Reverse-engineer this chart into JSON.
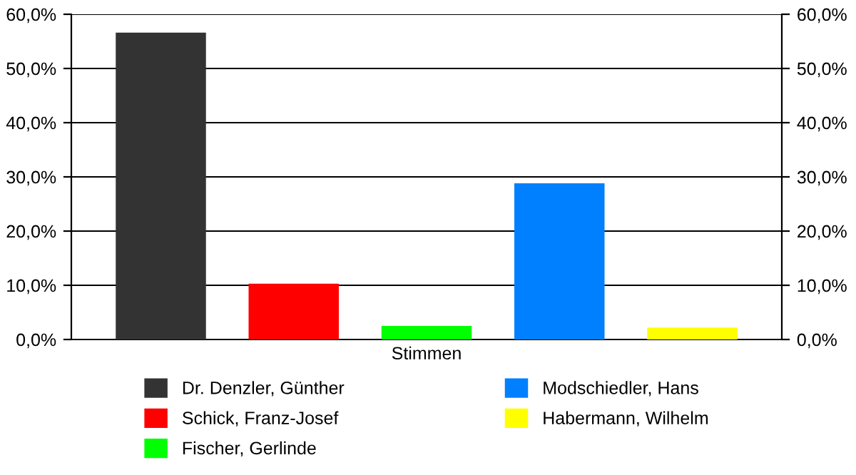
{
  "chart_data": {
    "type": "bar",
    "categories": [
      "Stimmen"
    ],
    "series": [
      {
        "name": "Dr. Denzler, Günther",
        "color": "#333333",
        "values": [
          56.6
        ]
      },
      {
        "name": "Schick, Franz-Josef",
        "color": "#ff0000",
        "values": [
          10.3
        ]
      },
      {
        "name": "Fischer, Gerlinde",
        "color": "#00ff00",
        "values": [
          2.5
        ]
      },
      {
        "name": "Modschiedler, Hans",
        "color": "#0080ff",
        "values": [
          28.8
        ]
      },
      {
        "name": "Habermann, Wilhelm",
        "color": "#ffff00",
        "values": [
          2.2
        ]
      }
    ],
    "ylim": [
      0,
      60
    ],
    "yticks": [
      {
        "value": 0,
        "label": "0,0%"
      },
      {
        "value": 10,
        "label": "10,0%"
      },
      {
        "value": 20,
        "label": "20,0%"
      },
      {
        "value": 30,
        "label": "30,0%"
      },
      {
        "value": 40,
        "label": "40,0%"
      },
      {
        "value": 50,
        "label": "50,0%"
      },
      {
        "value": 60,
        "label": "60,0%"
      }
    ],
    "grid": "y",
    "legend": "bottom"
  }
}
